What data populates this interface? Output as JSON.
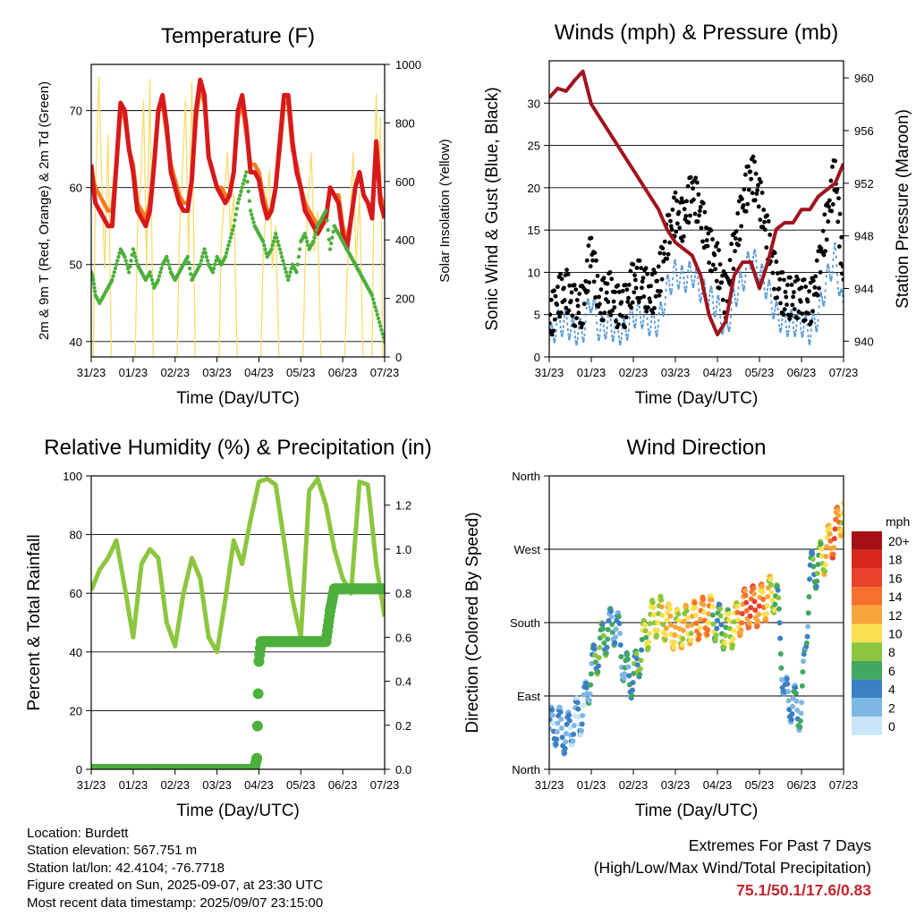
{
  "x_ticks": [
    "31/23",
    "01/23",
    "02/23",
    "03/23",
    "04/23",
    "05/23",
    "06/23",
    "07/23"
  ],
  "colors": {
    "temp_2m": "#d7191c",
    "temp_9m": "#f47b20",
    "dewpoint": "#4daf3c",
    "solar": "#f7dc6f",
    "wind": "#5a9bd5",
    "gust": "#000000",
    "pressure": "#a0141e",
    "rh": "#8cc63f",
    "precip": "#4daf3c",
    "extremes": "#c0262d"
  },
  "chart_data": [
    {
      "type": "line",
      "title": "Temperature (F)",
      "xlabel": "Time (Day/UTC)",
      "ylabel": "2m & 9m T (Red, Orange) & 2m Td (Green)",
      "ylabel_right": "Solar Insolation (Yellow)",
      "ylim": [
        38,
        76
      ],
      "yticks": [
        40,
        50,
        60,
        70
      ],
      "ylim_right": [
        0,
        1000
      ],
      "yticks_right": [
        0,
        200,
        400,
        600,
        800,
        1000
      ],
      "x": [
        0,
        0.05,
        0.1,
        0.2,
        0.3,
        0.4,
        0.5,
        0.6,
        0.7,
        0.8,
        0.9,
        1.0,
        1.1,
        1.2,
        1.3,
        1.4,
        1.5,
        1.6,
        1.7,
        1.8,
        1.9,
        2.0,
        2.1,
        2.2,
        2.3,
        2.4,
        2.5,
        2.6,
        2.7,
        2.8,
        2.9,
        3.0,
        3.1,
        3.2,
        3.3,
        3.4,
        3.5,
        3.6,
        3.7,
        3.8,
        3.9,
        4.0,
        4.1,
        4.2,
        4.3,
        4.4,
        4.5,
        4.6,
        4.7,
        4.8,
        4.9,
        5.0,
        5.1,
        5.2,
        5.3,
        5.4,
        5.5,
        5.6,
        5.7,
        5.8,
        5.9,
        6.0,
        6.1,
        6.2,
        6.3,
        6.4,
        6.5,
        6.6,
        6.7,
        6.8,
        6.9,
        7.0
      ],
      "series": [
        {
          "values": [
            63,
            60,
            58,
            57,
            56,
            55,
            55,
            63,
            71,
            70,
            65,
            62,
            57,
            56,
            55,
            57,
            63,
            70,
            72,
            68,
            62,
            60,
            58,
            57,
            57,
            61,
            70,
            74,
            72,
            64,
            62,
            60,
            59,
            58,
            59,
            62,
            70,
            72,
            68,
            62,
            62,
            61,
            58,
            56,
            57,
            60,
            66,
            72,
            72,
            66,
            62,
            60,
            57,
            56,
            55,
            54,
            55,
            56,
            60,
            59,
            58,
            54,
            52,
            56,
            60,
            62,
            59,
            58,
            56,
            66,
            58,
            56
          ]
        },
        {
          "values": [
            63,
            61,
            60,
            59,
            58,
            57,
            57,
            63,
            70,
            69,
            65,
            63,
            58,
            57,
            56,
            58,
            63,
            70,
            71,
            67,
            63,
            61,
            59,
            58,
            58,
            61,
            69,
            73,
            71,
            64,
            62,
            60,
            60,
            59,
            59,
            62,
            69,
            71,
            67,
            63,
            63,
            62,
            59,
            57,
            57,
            60,
            65,
            71,
            71,
            65,
            63,
            60,
            58,
            57,
            56,
            55,
            55,
            56,
            60,
            59,
            59,
            55,
            53,
            56,
            60,
            62,
            59,
            58,
            57,
            65,
            59,
            57
          ]
        },
        {
          "values": [
            49,
            48,
            46,
            45,
            46,
            47,
            48,
            50,
            52,
            51,
            49,
            52,
            50,
            49,
            48,
            49,
            47,
            48,
            50,
            51,
            49,
            48,
            49,
            50,
            51,
            48,
            49,
            50,
            52,
            50,
            49,
            51,
            50,
            51,
            53,
            55,
            58,
            60,
            62,
            57,
            55,
            54,
            53,
            51,
            52,
            54,
            52,
            50,
            48,
            50,
            49,
            53,
            54,
            52,
            53,
            55,
            56,
            57,
            52,
            55,
            54,
            53,
            52,
            51,
            50,
            49,
            48,
            47,
            46,
            44,
            42,
            40
          ]
        }
      ],
      "solar": [
        {
          "day": 0,
          "x": [
            0.05,
            0.1,
            0.18,
            0.25,
            0.32,
            0.4,
            0.48
          ],
          "values": [
            0,
            560,
            960,
            600,
            300,
            760,
            0
          ]
        },
        {
          "day": 1,
          "x": [
            1.05,
            1.1,
            1.18,
            1.25,
            1.32,
            1.4,
            1.48
          ],
          "values": [
            0,
            420,
            600,
            880,
            300,
            950,
            0
          ]
        },
        {
          "day": 2,
          "x": [
            2.05,
            2.1,
            2.18,
            2.25,
            2.32,
            2.4,
            2.48
          ],
          "values": [
            0,
            400,
            650,
            880,
            350,
            940,
            0
          ]
        },
        {
          "day": 3,
          "x": [
            3.05,
            3.1,
            3.18,
            3.25,
            3.32,
            3.4,
            3.48
          ],
          "values": [
            0,
            380,
            560,
            700,
            420,
            560,
            0
          ]
        },
        {
          "day": 4,
          "x": [
            4.05,
            4.1,
            4.18,
            4.25,
            4.32,
            4.4,
            4.48
          ],
          "values": [
            0,
            350,
            520,
            640,
            300,
            450,
            0
          ]
        },
        {
          "day": 5,
          "x": [
            5.05,
            5.1,
            5.18,
            5.25,
            5.32,
            5.4,
            5.48
          ],
          "values": [
            0,
            300,
            560,
            700,
            360,
            500,
            0
          ]
        },
        {
          "day": 6,
          "x": [
            6.05,
            6.1,
            6.18,
            6.25,
            6.32,
            6.4,
            6.48
          ],
          "values": [
            0,
            260,
            480,
            700,
            320,
            560,
            0
          ]
        },
        {
          "day": 6.7,
          "x": [
            6.7,
            6.75,
            6.8,
            6.85,
            6.9,
            6.95
          ],
          "values": [
            0,
            620,
            900,
            540,
            820,
            0
          ]
        }
      ]
    },
    {
      "type": "scatter",
      "title": "Winds (mph) & Pressure (mb)",
      "xlabel": "Time (Day/UTC)",
      "ylabel": "Sonic Wind & Gust (Blue, Black)",
      "ylabel_right": "Station Pressure (Maroon)",
      "ylim": [
        0,
        35
      ],
      "yticks": [
        0,
        5,
        10,
        15,
        20,
        25,
        30
      ],
      "ylim_right": [
        938.8,
        961.3
      ],
      "yticks_right": [
        940,
        944,
        948,
        952,
        956,
        960
      ],
      "x": [
        0,
        0.2,
        0.4,
        0.6,
        0.8,
        1.0,
        1.2,
        1.4,
        1.6,
        1.8,
        2.0,
        2.2,
        2.4,
        2.6,
        2.8,
        3.0,
        3.2,
        3.4,
        3.6,
        3.8,
        4.0,
        4.2,
        4.4,
        4.6,
        4.8,
        5.0,
        5.2,
        5.4,
        5.6,
        5.8,
        6.0,
        6.2,
        6.4,
        6.6,
        6.8,
        7.0
      ],
      "wind": [
        2,
        4,
        4,
        3,
        3,
        7,
        3,
        4,
        3,
        3,
        5,
        5,
        4,
        4,
        8,
        10,
        9,
        10,
        8,
        7,
        6,
        3,
        7,
        9,
        12,
        10,
        8,
        5,
        4,
        4,
        4,
        3,
        5,
        9,
        12,
        5
      ],
      "gust": [
        4,
        7,
        8,
        6,
        6,
        13,
        6,
        8,
        6,
        6,
        9,
        9,
        7,
        9,
        14,
        17,
        16,
        20,
        17,
        13,
        11,
        7,
        13,
        18,
        22,
        19,
        14,
        9,
        7,
        7,
        7,
        6,
        10,
        16,
        22,
        9
      ],
      "pressure": [
        958.5,
        959.2,
        959.0,
        959.8,
        960.5,
        958.0,
        957.0,
        956.0,
        955.0,
        954.0,
        953.0,
        952.0,
        951.0,
        950.0,
        948.5,
        947.5,
        947.0,
        946.5,
        945.0,
        942.0,
        940.5,
        941.5,
        945.0,
        946.0,
        946.0,
        944.0,
        946.0,
        948.5,
        949.0,
        949.0,
        950.0,
        950.0,
        951.0,
        951.5,
        952.0,
        953.5
      ]
    },
    {
      "type": "line",
      "title": "Relative Humidity (%) & Precipitation (in)",
      "xlabel": "Time (Day/UTC)",
      "ylabel": "Percent & Total Rainfall",
      "ylim": [
        0,
        100
      ],
      "yticks": [
        0,
        20,
        40,
        60,
        80,
        100
      ],
      "ylim_right": [
        0,
        1.333
      ],
      "yticks_right": [
        0.0,
        0.2,
        0.4,
        0.6,
        0.8,
        1.0,
        1.2
      ],
      "x": [
        0,
        0.2,
        0.4,
        0.6,
        0.8,
        1.0,
        1.2,
        1.4,
        1.6,
        1.8,
        2.0,
        2.2,
        2.4,
        2.6,
        2.8,
        3.0,
        3.2,
        3.4,
        3.6,
        3.8,
        4.0,
        4.2,
        4.4,
        4.6,
        4.8,
        5.0,
        5.2,
        5.4,
        5.6,
        5.8,
        6.0,
        6.2,
        6.4,
        6.6,
        6.8,
        7.0
      ],
      "rh": [
        61,
        68,
        72,
        78,
        62,
        45,
        70,
        75,
        72,
        50,
        42,
        60,
        72,
        65,
        45,
        40,
        58,
        78,
        70,
        85,
        98,
        99,
        97,
        78,
        58,
        45,
        95,
        99,
        90,
        75,
        65,
        60,
        98,
        97,
        70,
        52
      ],
      "precip_x": [
        0,
        3.85,
        3.9,
        3.95,
        4.0,
        4.05,
        5.6,
        5.65,
        5.7,
        5.8,
        7.0
      ],
      "precip": [
        0,
        0,
        0.01,
        0.05,
        0.49,
        0.58,
        0.58,
        0.65,
        0.72,
        0.82,
        0.82
      ]
    },
    {
      "type": "scatter",
      "title": "Wind Direction",
      "xlabel": "Time (Day/UTC)",
      "ylabel": "Direction (Colored By Speed)",
      "ylim": [
        0,
        360
      ],
      "yticklabels": [
        "North",
        "East",
        "South",
        "West",
        "North"
      ],
      "legend_title": "mph",
      "legend_labels": [
        "20+",
        "18",
        "16",
        "14",
        "12",
        "10",
        "8",
        "6",
        "4",
        "2",
        "0"
      ],
      "legend_colors": [
        "#a50f15",
        "#d7261e",
        "#e8412c",
        "#f4702c",
        "#f8a53b",
        "#fbe14f",
        "#8cc63f",
        "#41a861",
        "#3b7fc4",
        "#7db7e3",
        "#c8e6f7"
      ],
      "x": [
        0,
        0.2,
        0.4,
        0.6,
        0.8,
        1.0,
        1.2,
        1.4,
        1.6,
        1.8,
        2.0,
        2.2,
        2.4,
        2.6,
        2.8,
        3.0,
        3.2,
        3.4,
        3.6,
        3.8,
        4.0,
        4.2,
        4.4,
        4.6,
        4.8,
        5.0,
        5.2,
        5.4,
        5.6,
        5.8,
        6.0,
        6.2,
        6.4,
        6.6,
        6.8,
        7.0
      ],
      "direction": [
        50,
        55,
        40,
        60,
        70,
        120,
        150,
        170,
        180,
        120,
        110,
        150,
        180,
        190,
        180,
        170,
        175,
        180,
        185,
        190,
        180,
        170,
        175,
        195,
        200,
        200,
        210,
        220,
        90,
        80,
        70,
        240,
        250,
        270,
        290,
        320
      ],
      "speed": [
        3,
        4,
        4,
        3,
        3,
        5,
        8,
        6,
        4,
        5,
        6,
        8,
        10,
        10,
        12,
        12,
        11,
        12,
        14,
        13,
        6,
        9,
        10,
        15,
        16,
        14,
        12,
        8,
        4,
        4,
        5,
        6,
        8,
        12,
        16,
        10
      ]
    }
  ],
  "info": {
    "location": "Location: Burdett",
    "elevation": "Station elevation: 567.751 m",
    "latlon": "Station lat/lon: 42.4104; -76.7718",
    "created": "Figure created on Sun, 2025-09-07, at 23:30 UTC",
    "recent": "Most recent data timestamp: 2025/09/07 23:15:00"
  },
  "extremes": {
    "line1": "Extremes For Past 7 Days",
    "line2": "(High/Low/Max Wind/Total Precipitation)",
    "values": "75.1/50.1/17.6/0.83"
  }
}
